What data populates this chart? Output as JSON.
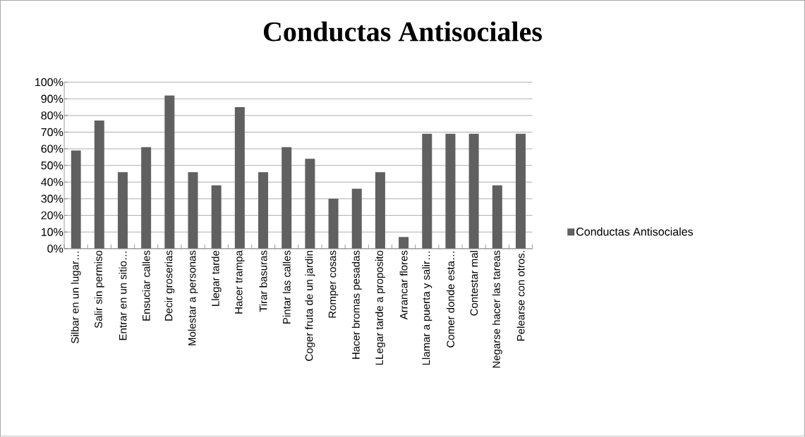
{
  "chart_data": {
    "type": "bar",
    "title": "Conductas Antisociales",
    "categories": [
      "Silbar en un lugar…",
      "Salir sin permiso",
      "Entrar en un sitio…",
      "Ensuciar calles",
      "Decir groserias",
      "Molestar a personas",
      "Llegar tarde",
      "Hacer trampa",
      "Tirar basuras",
      "Pintar las calles",
      "Coger fruta de un jardin",
      "Romper cosas",
      "Hacer bromas pesadas",
      "LLegar tarde a proposito",
      "Arrancar flores",
      "Llamar a puerta y salir…",
      "Comer donde esta…",
      "Contestar mal",
      "Negarse hacer las tareas",
      "Pelearse con otros."
    ],
    "series": [
      {
        "name": "Conductas Antisociales",
        "color": "#606060",
        "values": [
          59,
          77,
          46,
          61,
          92,
          46,
          38,
          85,
          46,
          61,
          54,
          30,
          36,
          46,
          7,
          69,
          69,
          69,
          38,
          69
        ]
      }
    ],
    "ylim": [
      0,
      100
    ],
    "yticks": [
      {
        "value": 0,
        "label": "0%"
      },
      {
        "value": 10,
        "label": "10%"
      },
      {
        "value": 20,
        "label": "20%"
      },
      {
        "value": 30,
        "label": "30%"
      },
      {
        "value": 40,
        "label": "40%"
      },
      {
        "value": 50,
        "label": "50%"
      },
      {
        "value": 60,
        "label": "60%"
      },
      {
        "value": 70,
        "label": "70%"
      },
      {
        "value": 80,
        "label": "80%"
      },
      {
        "value": 90,
        "label": "90%"
      },
      {
        "value": 100,
        "label": "100%"
      }
    ],
    "grid": "y",
    "legend": "right"
  }
}
